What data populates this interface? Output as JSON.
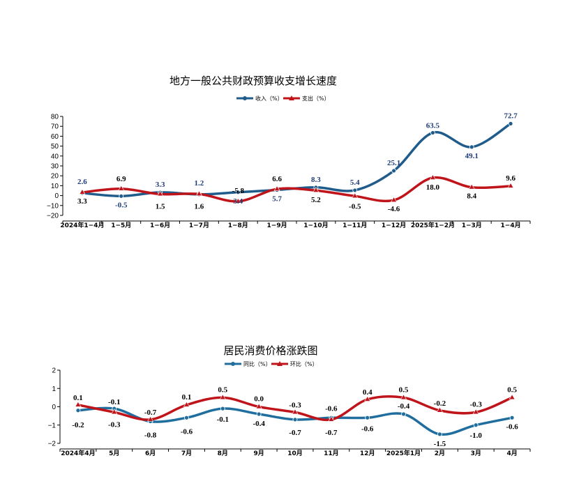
{
  "chart_data": [
    {
      "type": "line",
      "title": "地方一般公共财政预算收支增长速度",
      "categories": [
        "2024年1−4月",
        "1−5月",
        "1−6月",
        "1−7月",
        "1−8月",
        "1−9月",
        "1−10月",
        "1−11月",
        "1−12月",
        "2025年1−2月",
        "1−3月",
        "1−4月"
      ],
      "series": [
        {
          "name": "收入（%）",
          "color": "#1F5C8B",
          "marker": "circle",
          "values": [
            2.6,
            -0.5,
            3.3,
            1.2,
            3.4,
            5.7,
            8.3,
            5.4,
            25.1,
            63.5,
            49.1,
            72.7
          ],
          "labels": [
            "2.6",
            "-0.5",
            "3.3",
            "1.2",
            "3.4",
            "5.7",
            "8.3",
            "5.4",
            "25.1",
            "63.5",
            "49.1",
            "72.7"
          ]
        },
        {
          "name": "支出（%）",
          "color": "#C0141B",
          "marker": "triangle",
          "values": [
            3.3,
            6.9,
            1.5,
            1.6,
            -5.8,
            6.6,
            5.2,
            -0.5,
            -4.6,
            18.0,
            8.4,
            9.6
          ],
          "labels": [
            "3.3",
            "6.9",
            "1.5",
            "1.6",
            "-5.8",
            "6.6",
            "5.2",
            "-0.5",
            "-4.6",
            "18.0",
            "8.4",
            "9.6"
          ]
        }
      ],
      "ylim": [
        -20,
        80
      ],
      "yticks": [
        "80",
        "70",
        "60",
        "50",
        "40",
        "30",
        "20",
        "10",
        "0",
        "−10",
        "−20"
      ],
      "legend": "top-center",
      "grid": false
    },
    {
      "type": "line",
      "title": "居民消费价格涨跌图",
      "categories": [
        "2024年4月",
        "5月",
        "6月",
        "7月",
        "8月",
        "9月",
        "10月",
        "11月",
        "12月",
        "2025年1月",
        "2月",
        "3月",
        "4月"
      ],
      "series": [
        {
          "name": "同比（%）",
          "color": "#1F6E9E",
          "marker": "circle",
          "values": [
            -0.2,
            -0.1,
            -0.8,
            -0.6,
            -0.1,
            -0.4,
            -0.7,
            -0.6,
            -0.6,
            -0.4,
            -1.5,
            -1.0,
            -0.6
          ],
          "labels": [
            "-0.2",
            "-0.1",
            "-0.8",
            "-0.6",
            "-0.1",
            "-0.4",
            "-0.7",
            "-0.6",
            "-0.6",
            "-0.4",
            "-1.5",
            "-1.0",
            "-0.6"
          ]
        },
        {
          "name": "环比（%）",
          "color": "#C0141B",
          "marker": "triangle",
          "values": [
            0.1,
            -0.3,
            -0.7,
            0.1,
            0.5,
            0.0,
            -0.3,
            -0.7,
            0.4,
            0.5,
            -0.2,
            -0.3,
            0.5
          ],
          "labels": [
            "0.1",
            "-0.3",
            "-0.7",
            "0.1",
            "0.5",
            "0.0",
            "-0.3",
            "-0.7",
            "0.4",
            "0.5",
            "-0.2",
            "-0.3",
            "0.5"
          ]
        }
      ],
      "ylim": [
        -2,
        2
      ],
      "yticks": [
        "2",
        "1",
        "0",
        "−1",
        "−2"
      ],
      "legend": "top-center",
      "grid": false
    }
  ]
}
